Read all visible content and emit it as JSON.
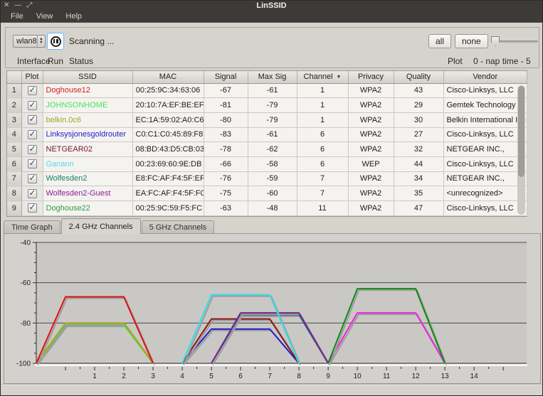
{
  "window": {
    "title": "LinSSID",
    "controls": [
      {
        "name": "close",
        "glyph": "✕"
      },
      {
        "name": "minimize",
        "glyph": "—"
      },
      {
        "name": "maximize",
        "glyph": "⤢"
      }
    ]
  },
  "menu": {
    "items": [
      "File",
      "View",
      "Help"
    ]
  },
  "toolbar": {
    "interface": {
      "value": "wlan8",
      "label": "Interface"
    },
    "run": {
      "label": "Run"
    },
    "status": {
      "text": "Scanning ...",
      "label": "Status"
    },
    "plot": {
      "all_label": "all",
      "none_label": "none",
      "label": "Plot"
    },
    "slider": {
      "caption": "0 - nap time - 5",
      "min": 0,
      "max": 5,
      "value": 0
    }
  },
  "table": {
    "columns": [
      "Plot",
      "SSID",
      "MAC",
      "Signal",
      "Max Sig",
      "Channel",
      "Privacy",
      "Quality",
      "Vendor"
    ],
    "sort_column": "Channel",
    "sort_indicator": "▼",
    "check_glyph": "✓",
    "rows": [
      {
        "num": 1,
        "checked": true,
        "ssid": "Doghouse12",
        "ssid_color": "#d42222",
        "mac": "00:25:9C:34:63:06",
        "signal": "-67",
        "max_sig": "-61",
        "channel": "1",
        "privacy": "WPA2",
        "quality": "43",
        "vendor": "Cisco-Linksys, LLC"
      },
      {
        "num": 2,
        "checked": true,
        "ssid": "JOHNSONHOME",
        "ssid_color": "#44e65a",
        "mac": "20:10:7A:EF:BE:EF",
        "signal": "-81",
        "max_sig": "-79",
        "channel": "1",
        "privacy": "WPA2",
        "quality": "29",
        "vendor": "Gemtek Technology C…"
      },
      {
        "num": 3,
        "checked": true,
        "ssid": "belkin.0c6",
        "ssid_color": "#a3a32a",
        "mac": "EC:1A:59:02:A0:C6",
        "signal": "-80",
        "max_sig": "-79",
        "channel": "1",
        "privacy": "WPA2",
        "quality": "30",
        "vendor": "Belkin International Inc"
      },
      {
        "num": 4,
        "checked": true,
        "ssid": "Linksysjonesgoldrouter",
        "ssid_color": "#2222cc",
        "mac": "C0:C1:C0:45:89:F8",
        "signal": "-83",
        "max_sig": "-61",
        "channel": "6",
        "privacy": "WPA2",
        "quality": "27",
        "vendor": "Cisco-Linksys, LLC"
      },
      {
        "num": 5,
        "checked": true,
        "ssid": "NETGEAR02",
        "ssid_color": "#7a1830",
        "mac": "08:BD:43:D5:CB:03",
        "signal": "-78",
        "max_sig": "-62",
        "channel": "6",
        "privacy": "WPA2",
        "quality": "32",
        "vendor": "NETGEAR INC.,"
      },
      {
        "num": 6,
        "checked": true,
        "ssid": "Ganann",
        "ssid_color": "#55dde0",
        "mac": "00:23:69:60:9E:DB",
        "signal": "-66",
        "max_sig": "-58",
        "channel": "6",
        "privacy": "WEP",
        "quality": "44",
        "vendor": "Cisco-Linksys, LLC"
      },
      {
        "num": 7,
        "checked": true,
        "ssid": "Wolfesden2",
        "ssid_color": "#1a8060",
        "mac": "E8:FC:AF:F4:5F:EF",
        "signal": "-76",
        "max_sig": "-59",
        "channel": "7",
        "privacy": "WPA2",
        "quality": "34",
        "vendor": "NETGEAR INC.,"
      },
      {
        "num": 8,
        "checked": true,
        "ssid": "Wolfesden2-Guest",
        "ssid_color": "#8f2090",
        "mac": "EA:FC:AF:F4:5F:F0",
        "signal": "-75",
        "max_sig": "-60",
        "channel": "7",
        "privacy": "WPA2",
        "quality": "35",
        "vendor": "<unrecognized>"
      },
      {
        "num": 9,
        "checked": true,
        "ssid": "Doghouse22",
        "ssid_color": "#2f9e3f",
        "mac": "00:25:9C:59:F5:FC",
        "signal": "-63",
        "max_sig": "-48",
        "channel": "11",
        "privacy": "WPA2",
        "quality": "47",
        "vendor": "Cisco-Linksys, LLC"
      }
    ]
  },
  "tabs": {
    "items": [
      "Time Graph",
      "2.4 GHz Channels",
      "5 GHz Channels"
    ],
    "active": "2.4 GHz Channels"
  },
  "chart_data": {
    "type": "area",
    "title": "",
    "xlabel": "",
    "ylabel": "",
    "xlim": [
      -1,
      15.8
    ],
    "ylim": [
      -100,
      -40
    ],
    "x_tick_labels": [
      1,
      2,
      3,
      4,
      5,
      6,
      7,
      8,
      9,
      10,
      11,
      12,
      13,
      14
    ],
    "y_tick_labels": [
      -40,
      -60,
      -80,
      -100
    ],
    "grid": "horizontal",
    "legend": "none",
    "plot_bg": "#c9c8c5",
    "grid_color": "#4a4a4a",
    "shadow_color": "#9c9c9c",
    "series": [
      {
        "name": "Linksysjonesgoldrouter",
        "color": "#2020cc",
        "channel": 6,
        "top_dbm": -83,
        "points": [
          [
            4,
            -100
          ],
          [
            5,
            -83
          ],
          [
            7,
            -83
          ],
          [
            8,
            -100
          ]
        ]
      },
      {
        "name": "JOHNSONHOME",
        "color": "#3ee04e",
        "channel": 1,
        "top_dbm": -81,
        "points": [
          [
            -1,
            -100
          ],
          [
            0,
            -81
          ],
          [
            2,
            -81
          ],
          [
            3,
            -100
          ]
        ]
      },
      {
        "name": "belkin.0c6",
        "color": "#a8a818",
        "channel": 1,
        "top_dbm": -80,
        "points": [
          [
            -1,
            -100
          ],
          [
            0,
            -80
          ],
          [
            2,
            -80
          ],
          [
            3,
            -100
          ]
        ]
      },
      {
        "name": "NETGEAR02",
        "color": "#8a1616",
        "channel": 6,
        "top_dbm": -78,
        "points": [
          [
            4,
            -100
          ],
          [
            5,
            -78
          ],
          [
            7,
            -78
          ],
          [
            8,
            -100
          ]
        ]
      },
      {
        "name": "Wolfesden2",
        "color": "#1f8080",
        "channel": 7,
        "top_dbm": -76,
        "points": [
          [
            5,
            -100
          ],
          [
            6,
            -76
          ],
          [
            8,
            -76
          ],
          [
            9,
            -100
          ]
        ]
      },
      {
        "name": "Wolfesden2-Guest",
        "color": "#7a2090",
        "channel": 7,
        "top_dbm": -75,
        "points": [
          [
            5,
            -100
          ],
          [
            6,
            -75
          ],
          [
            8,
            -75
          ],
          [
            9,
            -100
          ]
        ]
      },
      {
        "name": "",
        "color": "#ee22dd",
        "channel": 11,
        "top_dbm": -75,
        "points": [
          [
            9,
            -100
          ],
          [
            10,
            -75
          ],
          [
            12,
            -75
          ],
          [
            13,
            -100
          ]
        ]
      },
      {
        "name": "Doghouse22",
        "color": "#0f8a0f",
        "channel": 11,
        "top_dbm": -63,
        "points": [
          [
            9,
            -100
          ],
          [
            10,
            -63
          ],
          [
            12,
            -63
          ],
          [
            13,
            -100
          ]
        ]
      },
      {
        "name": "Ganann",
        "color": "#33dde8",
        "channel": 6,
        "top_dbm": -66,
        "points": [
          [
            4,
            -100
          ],
          [
            5,
            -66
          ],
          [
            7,
            -66
          ],
          [
            8,
            -100
          ]
        ]
      },
      {
        "name": "Doghouse12",
        "color": "#e01010",
        "channel": 1,
        "top_dbm": -67,
        "points": [
          [
            -1,
            -100
          ],
          [
            0,
            -67
          ],
          [
            2,
            -67
          ],
          [
            3,
            -100
          ]
        ]
      }
    ]
  }
}
